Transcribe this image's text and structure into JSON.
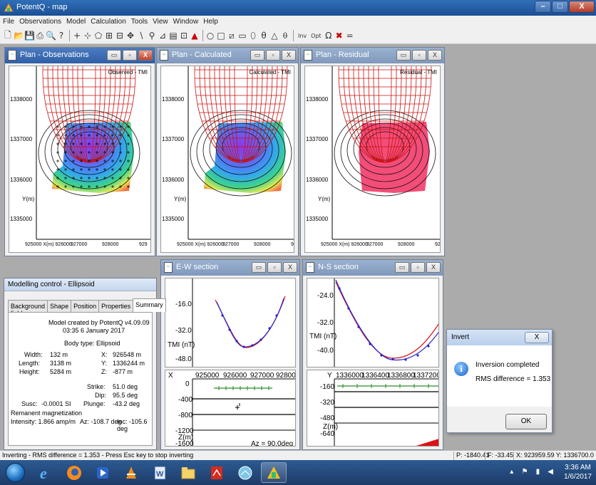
{
  "app": {
    "title": "PotentQ - map"
  },
  "menu": [
    "File",
    "Observations",
    "Model",
    "Calculation",
    "Tools",
    "View",
    "Window",
    "Help"
  ],
  "toolbar": {
    "inv_label": "Inv",
    "opt_label": "Opt"
  },
  "plans": [
    {
      "title": "Plan - Observations",
      "tag": "Observed - TMI"
    },
    {
      "title": "Plan - Calculated",
      "tag": "Calculated - TMI"
    },
    {
      "title": "Plan - Residual",
      "tag": "Residual - TMI"
    }
  ],
  "plan_axes": {
    "y_ticks": [
      "1338000",
      "1337000",
      "1336000",
      "Y(m)",
      "1335000"
    ],
    "x_ticks": [
      "925000 X(m) 926000",
      "927000",
      "928000",
      "929"
    ]
  },
  "ew_section": {
    "title": "E-W section",
    "top_y_ticks": [
      "-16.0",
      "-32.0",
      "TMI (nT)",
      "-48.0"
    ],
    "x_ticks": [
      "X",
      "925000",
      "926000",
      "927000",
      "928000"
    ],
    "bottom_y_ticks": [
      "0",
      "-400",
      "-800",
      "-1200",
      "Z(m)",
      "-1600"
    ],
    "az_label": "Az = 90.0deg"
  },
  "ns_section": {
    "title": "N-S section",
    "top_y_ticks": [
      "-24.0",
      "-32.0",
      "TMI (nT)",
      "-40.0"
    ],
    "x_ticks": [
      "Y",
      "1336000",
      "1336400",
      "1336800",
      "1337200"
    ],
    "bottom_y_ticks": [
      "-160",
      "-320",
      "-480",
      "Z(m)",
      "-640"
    ]
  },
  "modelling": {
    "title": "Modelling control - Ellipsoid",
    "tabs": [
      "Background field",
      "Shape",
      "Position",
      "Properties",
      "Summary"
    ],
    "selected_tab": "Summary",
    "created": "Model created by PotentQ v4.09.09",
    "created_time": "03:35  6 January 2017",
    "body_type": "Body type: Ellipsoid",
    "width_label": "Width:",
    "width_value": "132 m",
    "length_label": "Length:",
    "length_value": "3138 m",
    "height_label": "Height:",
    "height_value": "5284 m",
    "x_label": "X:",
    "x_value": "926548 m",
    "y_label": "Y:",
    "y_value": "1336244 m",
    "z_label": "Z:",
    "z_value": "-877 m",
    "strike_label": "Strike:",
    "strike_value": "51.0 deg",
    "dip_label": "Dip:",
    "dip_value": "95.5 deg",
    "plunge_label": "Plunge:",
    "plunge_value": "-43.2 deg",
    "susc_label": "Susc:",
    "susc_value": "-0.0001 SI",
    "remanent": "Remanent magnetization",
    "intensity": "Intensity: 1.866 amp/m",
    "az": "Az: -108.7 deg",
    "inc": "Inc: -105.6 deg"
  },
  "invert_dialog": {
    "title": "Invert",
    "close": "X",
    "message": "Inversion completed",
    "rms": "RMS difference = 1.353",
    "ok": "OK"
  },
  "statusbar": {
    "message": "Inverting - RMS difference = 1.353  -  Press Esc key to stop inverting",
    "p": "P: -1840.41",
    "f": "F: -33.45",
    "xy": "X: 923959.59 Y: 1336700.0"
  },
  "taskbar": {
    "time": "3:36 AM",
    "date": "1/6/2017"
  },
  "colors": {
    "grid_red": "#cc1111",
    "titlebar": "#2f6fb8",
    "taskbar": "#1d3b68",
    "mdi_bg": "#ababab"
  }
}
